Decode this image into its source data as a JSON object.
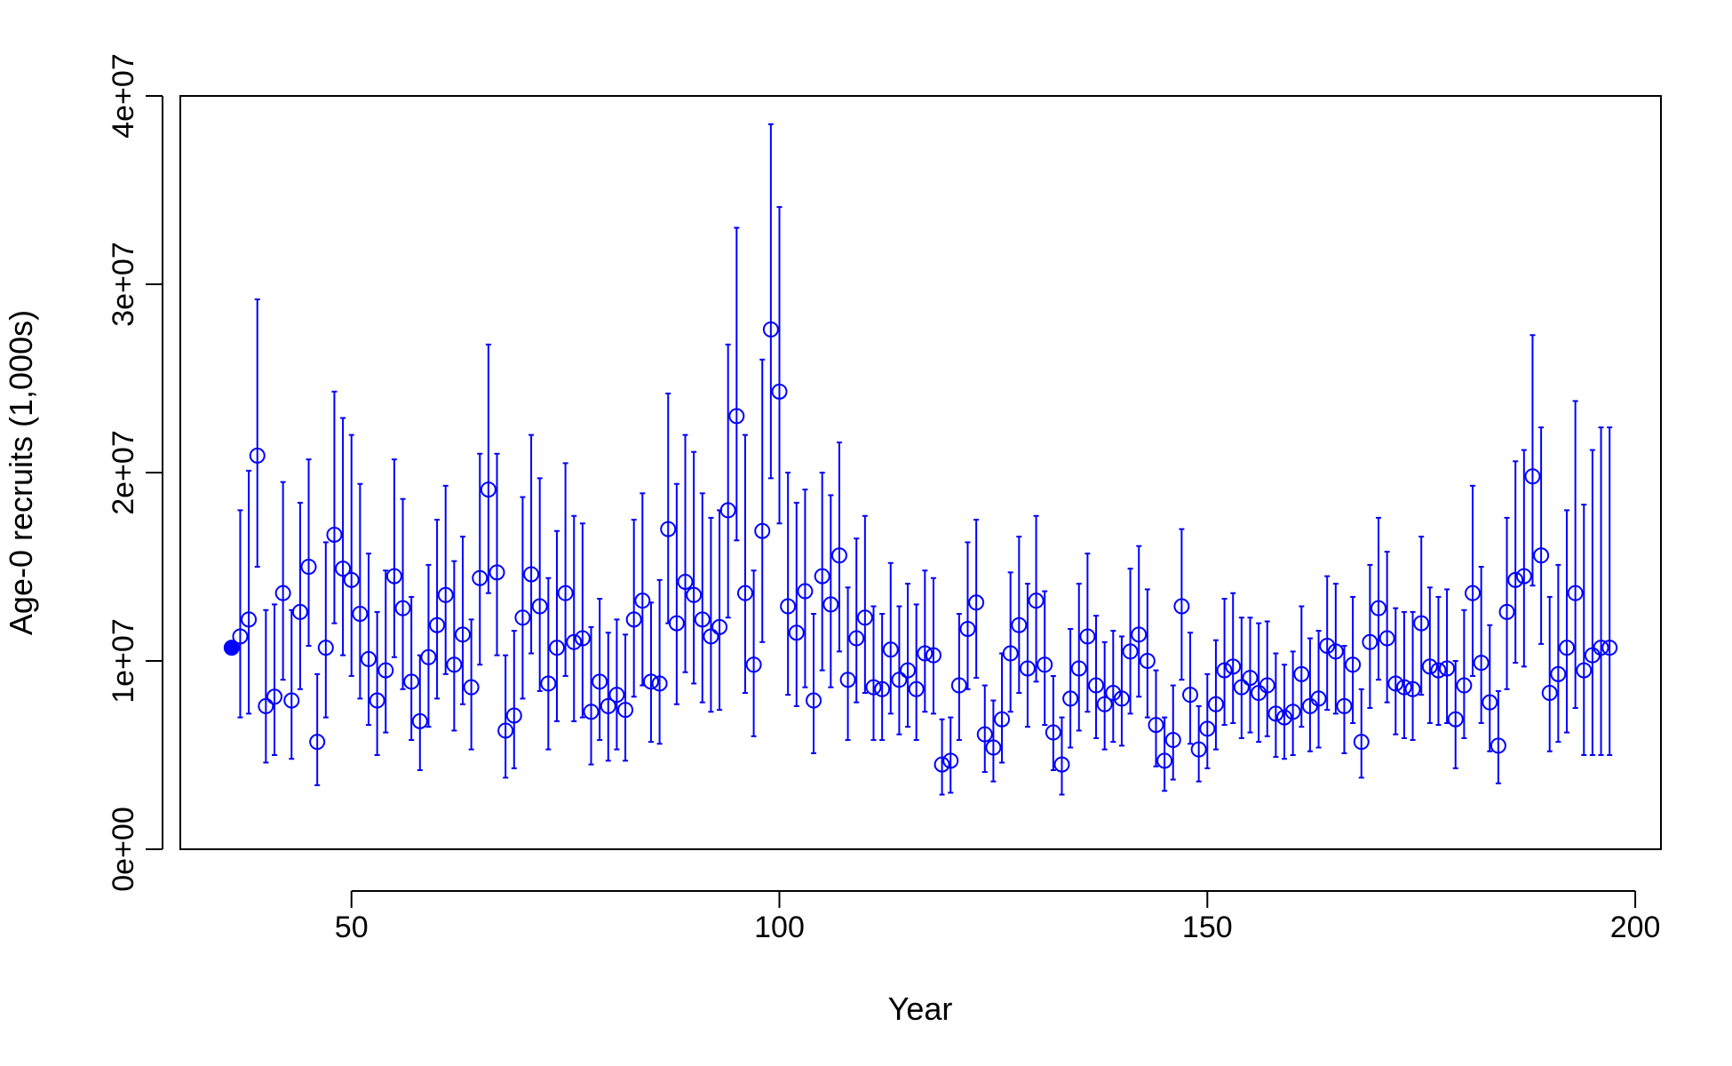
{
  "chart_data": {
    "type": "scatter",
    "title": "",
    "xlabel": "Year",
    "ylabel": "Age-0 recruits (1,000s)",
    "xlim": [
      30,
      203
    ],
    "ylim": [
      0,
      40000000
    ],
    "x_ticks": [
      50,
      100,
      150,
      200
    ],
    "x_tick_labels": [
      "50",
      "100",
      "150",
      "200"
    ],
    "y_ticks": [
      0,
      10000000,
      20000000,
      30000000,
      40000000
    ],
    "y_tick_labels": [
      "0e+00",
      "1e+07",
      "2e+07",
      "3e+07",
      "4e+07"
    ],
    "grid": false,
    "legend": "none",
    "color": "#0000ff",
    "filled_point": {
      "x": 36,
      "y": 10700000
    },
    "series": [
      {
        "x": [
          37,
          38,
          39,
          40,
          41,
          42,
          43,
          44,
          45,
          46,
          47,
          48,
          49,
          50,
          51,
          52,
          53,
          54,
          55,
          56,
          57,
          58,
          59,
          60,
          61,
          62,
          63,
          64,
          65,
          66,
          67,
          68,
          69,
          70,
          71,
          72,
          73,
          74,
          75,
          76,
          77,
          78,
          79,
          80,
          81,
          82,
          83,
          84,
          85,
          86,
          87,
          88,
          89,
          90,
          91,
          92,
          93,
          94,
          95,
          96,
          97,
          98,
          99,
          100,
          101,
          102,
          103,
          104,
          105,
          106,
          107,
          108,
          109,
          110,
          111,
          112,
          113,
          114,
          115,
          116,
          117,
          118,
          119,
          120,
          121,
          122,
          123,
          124,
          125,
          126,
          127,
          128,
          129,
          130,
          131,
          132,
          133,
          134,
          135,
          136,
          137,
          138,
          139,
          140,
          141,
          142,
          143,
          144,
          145,
          146,
          147,
          148,
          149,
          150,
          151,
          152,
          153,
          154,
          155,
          156,
          157,
          158,
          159,
          160,
          161,
          162,
          163,
          164,
          165,
          166,
          167,
          168,
          169,
          170,
          171,
          172,
          173,
          174,
          175,
          176,
          177,
          178,
          179,
          180,
          181,
          182,
          183,
          184,
          185,
          186,
          187,
          188,
          189,
          190,
          191,
          192,
          193,
          194,
          195,
          196,
          197
        ],
        "y": [
          11300000,
          12200000,
          20900000,
          7600000,
          8100000,
          13600000,
          7900000,
          12600000,
          15000000,
          5700000,
          10700000,
          16700000,
          14900000,
          14300000,
          12500000,
          10100000,
          7900000,
          9500000,
          14500000,
          12800000,
          8900000,
          6800000,
          10200000,
          11900000,
          13500000,
          9800000,
          11400000,
          8600000,
          14400000,
          19100000,
          14700000,
          6300000,
          7100000,
          12300000,
          14600000,
          12900000,
          8800000,
          10700000,
          13600000,
          11000000,
          11200000,
          7300000,
          8900000,
          7600000,
          8200000,
          7400000,
          12200000,
          13200000,
          8900000,
          8800000,
          17000000,
          12000000,
          14200000,
          13500000,
          12200000,
          11300000,
          11800000,
          18000000,
          23000000,
          13600000,
          9800000,
          16900000,
          27600000,
          24300000,
          12900000,
          11500000,
          13700000,
          7900000,
          14500000,
          13000000,
          15600000,
          9000000,
          11200000,
          12300000,
          8600000,
          8500000,
          10600000,
          9000000,
          9500000,
          8500000,
          10400000,
          10300000,
          4500000,
          4700000,
          8700000,
          11700000,
          13100000,
          6100000,
          5400000,
          6900000,
          10400000,
          11900000,
          9600000,
          13200000,
          9800000,
          6200000,
          4500000,
          8000000,
          9600000,
          11300000,
          8700000,
          7700000,
          8300000,
          8000000,
          10500000,
          11400000,
          10000000,
          6600000,
          4700000,
          5800000,
          12900000,
          8200000,
          5300000,
          6400000,
          7700000,
          9500000,
          9700000,
          8600000,
          9100000,
          8300000,
          8700000,
          7200000,
          7000000,
          7300000,
          9300000,
          7600000,
          8000000,
          10800000,
          10500000,
          7600000,
          9800000,
          5700000,
          11000000,
          12800000,
          11200000,
          8800000,
          8600000,
          8500000,
          12000000,
          9700000,
          9500000,
          9600000,
          6900000,
          8700000,
          13600000,
          9900000,
          7800000,
          5500000,
          12600000,
          14300000,
          14500000,
          19800000,
          15600000,
          8300000,
          9300000,
          10700000,
          13600000,
          9500000,
          10300000,
          10700000,
          10700000
        ],
        "y_lower": [
          7000000,
          7200000,
          15000000,
          4600000,
          5000000,
          9000000,
          4800000,
          8500000,
          10800000,
          3400000,
          7000000,
          12000000,
          10300000,
          9200000,
          8000000,
          6600000,
          5000000,
          6200000,
          10200000,
          8500000,
          5800000,
          4200000,
          6500000,
          8000000,
          9300000,
          6300000,
          7700000,
          5300000,
          9800000,
          13600000,
          10300000,
          3800000,
          4300000,
          8000000,
          10400000,
          8400000,
          5300000,
          6800000,
          9200000,
          6800000,
          7000000,
          4500000,
          5800000,
          4700000,
          5300000,
          4700000,
          8100000,
          8700000,
          5700000,
          5600000,
          12000000,
          7700000,
          9400000,
          8800000,
          7800000,
          7300000,
          7400000,
          12300000,
          16400000,
          8300000,
          6000000,
          11000000,
          19700000,
          17300000,
          8200000,
          7600000,
          8600000,
          5100000,
          9500000,
          8600000,
          10500000,
          5800000,
          7800000,
          8300000,
          5800000,
          5800000,
          7200000,
          6100000,
          6500000,
          5800000,
          7300000,
          7200000,
          2900000,
          3000000,
          5800000,
          8500000,
          9100000,
          4100000,
          3600000,
          4600000,
          7300000,
          8300000,
          6500000,
          8900000,
          6600000,
          4200000,
          2900000,
          5400000,
          6300000,
          7300000,
          5900000,
          5300000,
          5700000,
          5500000,
          7200000,
          8100000,
          7000000,
          4400000,
          3100000,
          3700000,
          9000000,
          5600000,
          3600000,
          4300000,
          5300000,
          6600000,
          6700000,
          5900000,
          6200000,
          5700000,
          6000000,
          4900000,
          4800000,
          5000000,
          6500000,
          5200000,
          5400000,
          7400000,
          7200000,
          5100000,
          6700000,
          3800000,
          7500000,
          9000000,
          7800000,
          6100000,
          5900000,
          5800000,
          8200000,
          6700000,
          6600000,
          6700000,
          4300000,
          5900000,
          9200000,
          6700000,
          5200000,
          3500000,
          8500000,
          9900000,
          9700000,
          14000000,
          10900000,
          5200000,
          5700000,
          6200000,
          7500000,
          5000000,
          5000000,
          5000000,
          5000000
        ],
        "y_upper": [
          18000000,
          20100000,
          29200000,
          12700000,
          13000000,
          19500000,
          12700000,
          18400000,
          20700000,
          9300000,
          16300000,
          24300000,
          22900000,
          22000000,
          19400000,
          15700000,
          12600000,
          14800000,
          20700000,
          18600000,
          13400000,
          10300000,
          15100000,
          17500000,
          19300000,
          15300000,
          16600000,
          12200000,
          21000000,
          26800000,
          21000000,
          10300000,
          11600000,
          18700000,
          22000000,
          19700000,
          14400000,
          16900000,
          20500000,
          17700000,
          17300000,
          11800000,
          13300000,
          11500000,
          12200000,
          11400000,
          17500000,
          18900000,
          13100000,
          14300000,
          24200000,
          19400000,
          22000000,
          21100000,
          18900000,
          17600000,
          18000000,
          26800000,
          33000000,
          22000000,
          14800000,
          26000000,
          38500000,
          34100000,
          20000000,
          18400000,
          19100000,
          12500000,
          20000000,
          18800000,
          21600000,
          13900000,
          16500000,
          17700000,
          12900000,
          12500000,
          15200000,
          12900000,
          14100000,
          13000000,
          14800000,
          14400000,
          6900000,
          7000000,
          12500000,
          16300000,
          17500000,
          8700000,
          7900000,
          10400000,
          14700000,
          16600000,
          14100000,
          17700000,
          13700000,
          9200000,
          7000000,
          11700000,
          14100000,
          15700000,
          12400000,
          11000000,
          11600000,
          11300000,
          14900000,
          16100000,
          13800000,
          9500000,
          7000000,
          8700000,
          17000000,
          11500000,
          7600000,
          9300000,
          11100000,
          13300000,
          13600000,
          12300000,
          12300000,
          12000000,
          12100000,
          10400000,
          9800000,
          10500000,
          12900000,
          11200000,
          11600000,
          14500000,
          14100000,
          10800000,
          13400000,
          8500000,
          15100000,
          17600000,
          15800000,
          12800000,
          12600000,
          12600000,
          16600000,
          13900000,
          13400000,
          13800000,
          10000000,
          12700000,
          19300000,
          15000000,
          11900000,
          8400000,
          17600000,
          20600000,
          21200000,
          27300000,
          22400000,
          13400000,
          15100000,
          18000000,
          23800000,
          18300000,
          21200000,
          22400000,
          22400000
        ]
      }
    ]
  }
}
